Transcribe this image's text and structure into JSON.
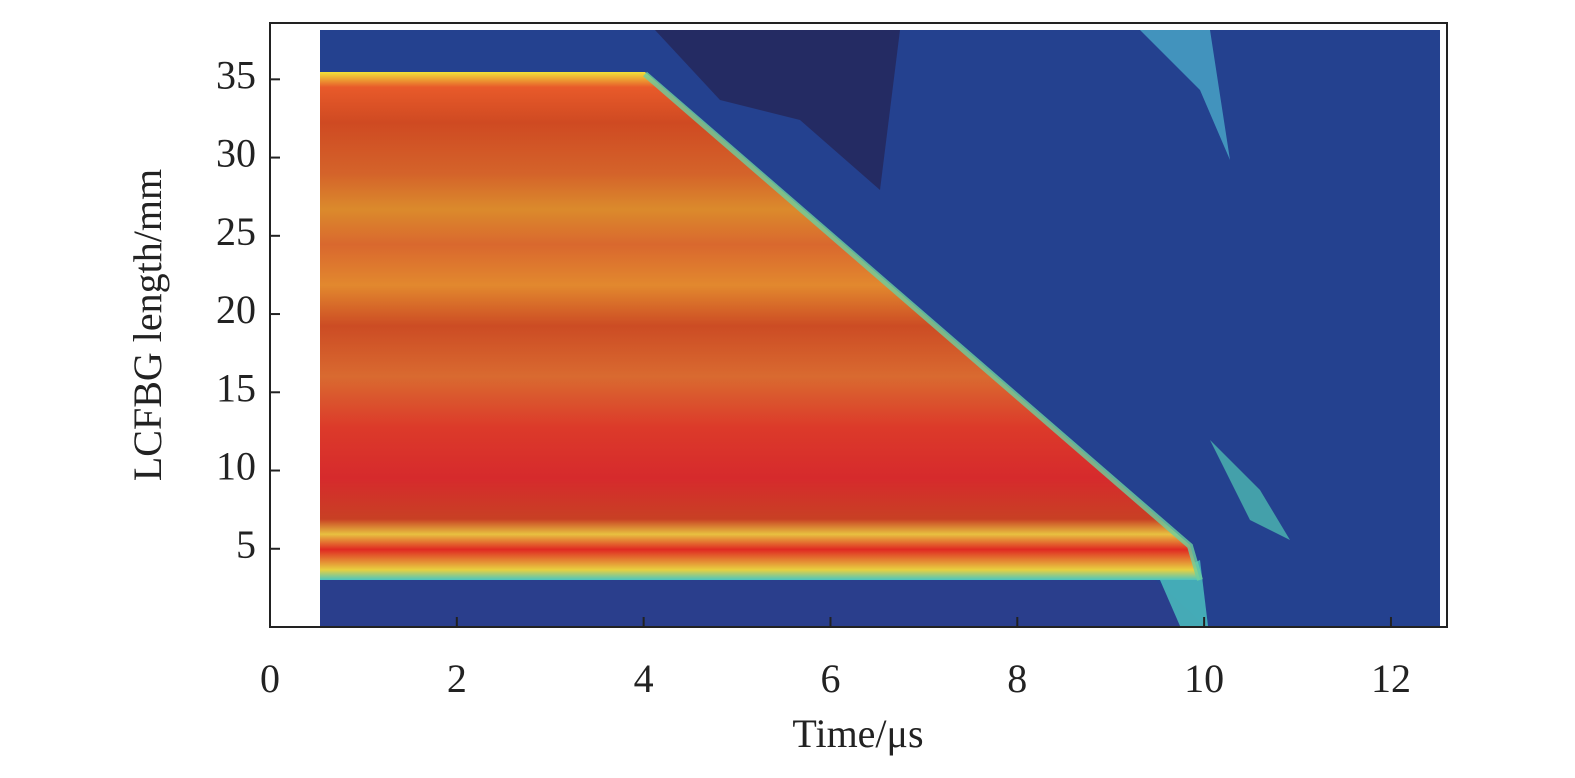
{
  "chart_data": {
    "type": "heatmap",
    "xlabel": "Time/μs",
    "ylabel": "LCFBG length/mm",
    "xlim": [
      0,
      12.6
    ],
    "xticks": [
      0,
      2,
      4,
      6,
      8,
      10,
      12
    ],
    "ylim": [
      0,
      38.6
    ],
    "yticks": [
      5,
      10,
      15,
      20,
      25,
      30,
      35
    ]
  }
}
